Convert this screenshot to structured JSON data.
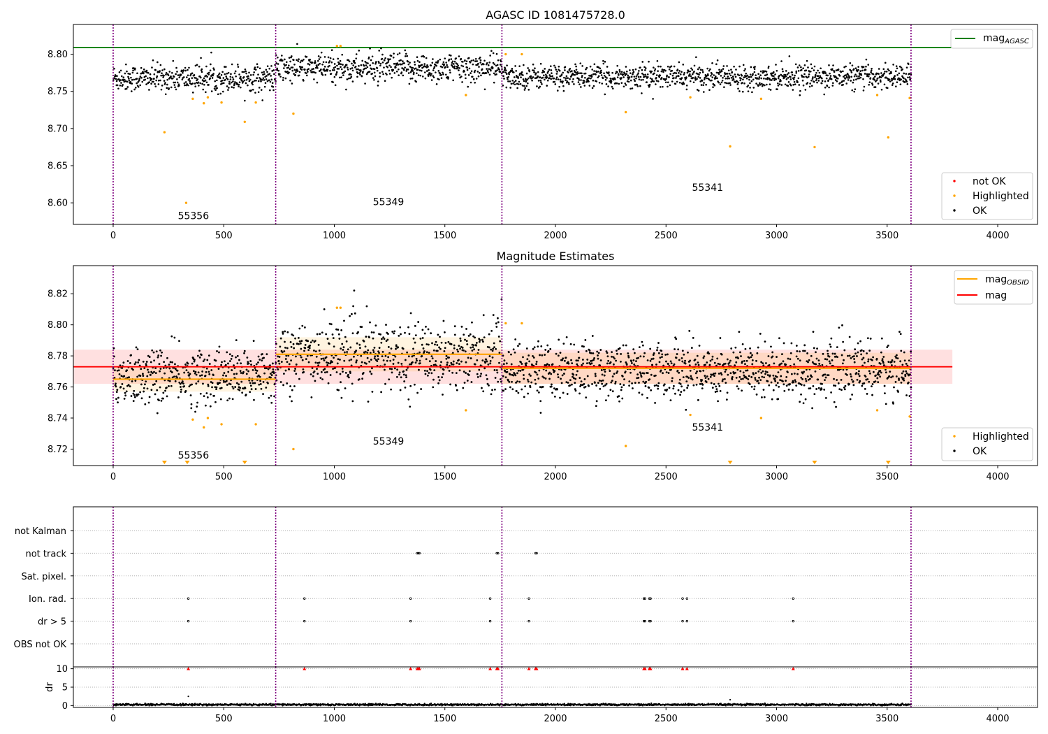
{
  "chart_data": [
    {
      "id": "top",
      "type": "scatter",
      "title": "AGASC ID 1081475728.0",
      "xlim": [
        -180,
        4180
      ],
      "ylim": [
        8.571,
        8.84
      ],
      "xticks": [
        0,
        500,
        1000,
        1500,
        2000,
        2500,
        3000,
        3500,
        4000
      ],
      "yticks": [
        8.6,
        8.65,
        8.7,
        8.75,
        8.8
      ],
      "obsid_boundaries": [
        0,
        735,
        1758,
        3608
      ],
      "obsid_labels": [
        {
          "text": "55356",
          "x": 363,
          "y": 8.578
        },
        {
          "text": "55349",
          "x": 1245,
          "y": 8.597
        },
        {
          "text": "55341",
          "x": 2688,
          "y": 8.616
        }
      ],
      "agasc_mag": 8.809,
      "agasc_line_x": [
        -180,
        3795
      ],
      "legend_top": {
        "main": "mag",
        "sub": "AGASC",
        "color": "#008000"
      },
      "legend_bottom": [
        {
          "label": "not OK",
          "color": "#ff0000"
        },
        {
          "label": "Highlighted",
          "color": "#ffa500"
        },
        {
          "label": "OK",
          "color": "#000000"
        }
      ],
      "series": [
        {
          "name": "OK",
          "color": "#000000",
          "segments": [
            {
              "x0": 0,
              "x1": 735,
              "mean": 8.768,
              "spread": 0.009
            },
            {
              "x0": 735,
              "x1": 1758,
              "mean": 8.781,
              "spread": 0.01
            },
            {
              "x0": 1758,
              "x1": 3608,
              "mean": 8.77,
              "spread": 0.008
            }
          ]
        },
        {
          "name": "Highlighted",
          "color": "#ffa500",
          "points": [
            [
              232,
              8.695
            ],
            [
              330,
              8.6
            ],
            [
              360,
              8.74
            ],
            [
              410,
              8.734
            ],
            [
              428,
              8.742
            ],
            [
              490,
              8.735
            ],
            [
              595,
              8.709
            ],
            [
              645,
              8.735
            ],
            [
              815,
              8.72
            ],
            [
              1012,
              8.811
            ],
            [
              1028,
              8.811
            ],
            [
              1595,
              8.745
            ],
            [
              1775,
              8.8
            ],
            [
              1848,
              8.8
            ],
            [
              2318,
              8.722
            ],
            [
              2610,
              8.742
            ],
            [
              2790,
              8.676
            ],
            [
              2930,
              8.74
            ],
            [
              3172,
              8.675
            ],
            [
              3455,
              8.745
            ],
            [
              3505,
              8.688
            ],
            [
              3602,
              8.741
            ]
          ]
        }
      ]
    },
    {
      "id": "middle",
      "type": "scatter",
      "title": "Magnitude Estimates",
      "xlim": [
        -180,
        4180
      ],
      "ylim": [
        8.7094,
        8.8381
      ],
      "xticks": [
        0,
        500,
        1000,
        1500,
        2000,
        2500,
        3000,
        3500,
        4000
      ],
      "yticks": [
        8.72,
        8.74,
        8.76,
        8.78,
        8.8,
        8.82
      ],
      "obsid_boundaries": [
        0,
        735,
        1758,
        3608
      ],
      "obsid_labels": [
        {
          "text": "55356",
          "x": 363,
          "y": 8.7138
        },
        {
          "text": "55349",
          "x": 1245,
          "y": 8.7228
        },
        {
          "text": "55341",
          "x": 2688,
          "y": 8.7318
        }
      ],
      "mag": 8.773,
      "mag_band": [
        8.762,
        8.784
      ],
      "mag_line_x": [
        -180,
        3795
      ],
      "obsid_mags": [
        {
          "x0": 0,
          "x1": 735,
          "mag": 8.765,
          "band": [
            8.757,
            8.773
          ]
        },
        {
          "x0": 735,
          "x1": 1758,
          "mag": 8.781,
          "band": [
            8.77,
            8.792
          ]
        },
        {
          "x0": 1758,
          "x1": 3608,
          "mag": 8.772,
          "band": [
            8.762,
            8.782
          ]
        }
      ],
      "legend_top": [
        {
          "main": "mag",
          "sub": "OBSID",
          "color": "#ffa500"
        },
        {
          "main": "mag",
          "sub": "",
          "color": "#ff0000"
        }
      ],
      "legend_bottom": [
        {
          "label": "Highlighted",
          "color": "#ffa500"
        },
        {
          "label": "OK",
          "color": "#000000"
        }
      ],
      "offscale_markers": [
        232,
        335,
        595,
        2790,
        3172,
        3505
      ],
      "series": [
        {
          "name": "OK",
          "color": "#000000",
          "segments": [
            {
              "x0": 0,
              "x1": 735,
              "mean": 8.767,
              "spread": 0.009
            },
            {
              "x0": 735,
              "x1": 1758,
              "mean": 8.78,
              "spread": 0.011
            },
            {
              "x0": 1758,
              "x1": 3608,
              "mean": 8.771,
              "spread": 0.009
            }
          ]
        },
        {
          "name": "Highlighted",
          "color": "#ffa500",
          "points": [
            [
              360,
              8.739
            ],
            [
              410,
              8.734
            ],
            [
              428,
              8.74
            ],
            [
              490,
              8.736
            ],
            [
              645,
              8.736
            ],
            [
              815,
              8.72
            ],
            [
              1012,
              8.811
            ],
            [
              1028,
              8.811
            ],
            [
              1595,
              8.745
            ],
            [
              1775,
              8.801
            ],
            [
              1848,
              8.801
            ],
            [
              2318,
              8.722
            ],
            [
              2610,
              8.742
            ],
            [
              2930,
              8.74
            ],
            [
              3455,
              8.745
            ],
            [
              3602,
              8.741
            ]
          ]
        }
      ]
    },
    {
      "id": "flags",
      "type": "scatter",
      "xlim": [
        -180,
        4180
      ],
      "xticks": [
        0,
        500,
        1000,
        1500,
        2000,
        2500,
        3000,
        3500,
        4000
      ],
      "categories": [
        "not Kalman",
        "not track",
        "Sat. pixel.",
        "Ion. rad.",
        "dr > 5",
        "OBS not OK"
      ],
      "obsid_boundaries": [
        0,
        735,
        1758,
        3608
      ],
      "flag_points": {
        "not track": [
          1375,
          1380,
          1385,
          1735,
          1740,
          1910,
          1915
        ],
        "Ion. rad.": [
          340,
          865,
          1345,
          1705,
          1880,
          2400,
          2405,
          2425,
          2430,
          2575,
          2595,
          3075
        ],
        "dr > 5": [
          340,
          865,
          1345,
          1705,
          1880,
          2400,
          2405,
          2425,
          2430,
          2575,
          2595,
          3075
        ]
      }
    },
    {
      "id": "dr",
      "type": "scatter",
      "ylabel": "dr",
      "xlim": [
        -180,
        4180
      ],
      "ylim": [
        -0.5,
        10.5
      ],
      "xticks": [
        0,
        500,
        1000,
        1500,
        2000,
        2500,
        3000,
        3500,
        4000
      ],
      "yticks": [
        0,
        5,
        10
      ],
      "obsid_boundaries": [
        0,
        735,
        1758,
        3608
      ],
      "offscale_markers": [
        340,
        865,
        1345,
        1375,
        1380,
        1385,
        1705,
        1735,
        1740,
        1880,
        1910,
        1915,
        2400,
        2405,
        2425,
        2430,
        2575,
        2595,
        3075
      ],
      "outliers": [
        [
          340,
          2.5
        ],
        [
          2790,
          1.6
        ]
      ],
      "series": [
        {
          "name": "dr",
          "color": "#000000",
          "x_range": [
            0,
            3608
          ],
          "mean": 0.25,
          "spread": 0.15
        }
      ]
    }
  ]
}
